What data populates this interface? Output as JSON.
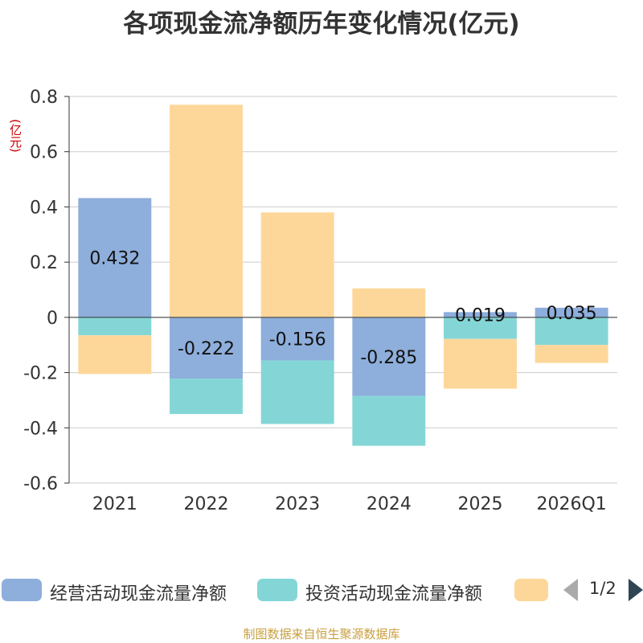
{
  "chart_data": {
    "type": "bar",
    "stacked": true,
    "title": "各项现金流净额历年变化情况(亿元)",
    "ylabel": "(亿元)",
    "categories": [
      "2021",
      "2022",
      "2023",
      "2024",
      "2025",
      "2026Q1"
    ],
    "ylim": [
      -0.6,
      0.8
    ],
    "yticks": [
      "0.8",
      "0.6",
      "0.4",
      "0.2",
      "0",
      "-0.2",
      "-0.4",
      "-0.6"
    ],
    "grid": true,
    "legend_position": "bottom",
    "series": [
      {
        "name": "经营活动现金流量净额",
        "color": "#8eaedb",
        "values": [
          0.432,
          -0.222,
          -0.156,
          -0.285,
          0.019,
          0.035
        ],
        "labels": [
          "0.432",
          "-0.222",
          "-0.156",
          "-0.285",
          "0.019",
          "0.035"
        ]
      },
      {
        "name": "投资活动现金流量净额",
        "color": "#84d6d6",
        "values": [
          -0.065,
          -0.128,
          -0.23,
          -0.18,
          -0.078,
          -0.1
        ]
      },
      {
        "name": "",
        "color": "#fdd79a",
        "values": [
          -0.14,
          0.77,
          0.38,
          0.105,
          -0.18,
          -0.065
        ]
      }
    ]
  },
  "legend": {
    "page": "1/2",
    "prev_icon": "triangle-left-icon",
    "next_icon": "triangle-right-icon"
  },
  "footer": {
    "source": "制图数据来自恒生聚源数据库"
  }
}
